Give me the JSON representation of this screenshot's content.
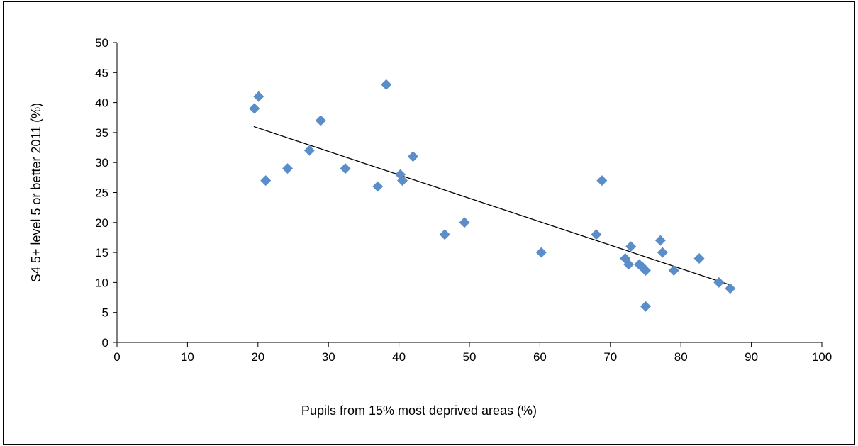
{
  "chart_data": {
    "type": "scatter",
    "title": "",
    "xlabel": "Pupils from 15% most deprived areas (%)",
    "ylabel": "S4 5+ level 5 or better 2011 (%)",
    "xlim": [
      0,
      100
    ],
    "ylim": [
      0,
      50
    ],
    "x_ticks": [
      0,
      10,
      20,
      30,
      40,
      50,
      60,
      70,
      80,
      90,
      100
    ],
    "y_ticks": [
      0,
      5,
      10,
      15,
      20,
      25,
      30,
      35,
      40,
      45,
      50
    ],
    "grid": false,
    "legend": "none",
    "marker": "diamond",
    "marker_color": "#5b8ec8",
    "trendline": {
      "type": "linear",
      "color": "#000000",
      "x": [
        19.4,
        87.2
      ],
      "y": [
        36.0,
        9.5
      ]
    },
    "points": [
      {
        "x": 19.5,
        "y": 39
      },
      {
        "x": 20.1,
        "y": 41
      },
      {
        "x": 21.1,
        "y": 27
      },
      {
        "x": 24.2,
        "y": 29
      },
      {
        "x": 27.3,
        "y": 32
      },
      {
        "x": 28.9,
        "y": 37
      },
      {
        "x": 32.4,
        "y": 29
      },
      {
        "x": 37.0,
        "y": 26
      },
      {
        "x": 38.2,
        "y": 43
      },
      {
        "x": 40.2,
        "y": 28
      },
      {
        "x": 40.5,
        "y": 27
      },
      {
        "x": 42.0,
        "y": 31
      },
      {
        "x": 46.5,
        "y": 18
      },
      {
        "x": 49.3,
        "y": 20
      },
      {
        "x": 60.2,
        "y": 15
      },
      {
        "x": 68.0,
        "y": 18
      },
      {
        "x": 68.8,
        "y": 27
      },
      {
        "x": 72.1,
        "y": 14
      },
      {
        "x": 72.6,
        "y": 13
      },
      {
        "x": 72.9,
        "y": 16
      },
      {
        "x": 74.1,
        "y": 13
      },
      {
        "x": 74.6,
        "y": 12.5
      },
      {
        "x": 75.0,
        "y": 12
      },
      {
        "x": 75.0,
        "y": 6
      },
      {
        "x": 77.1,
        "y": 17
      },
      {
        "x": 77.4,
        "y": 15
      },
      {
        "x": 79.0,
        "y": 12
      },
      {
        "x": 82.6,
        "y": 14
      },
      {
        "x": 85.4,
        "y": 10
      },
      {
        "x": 87.0,
        "y": 9
      }
    ]
  }
}
